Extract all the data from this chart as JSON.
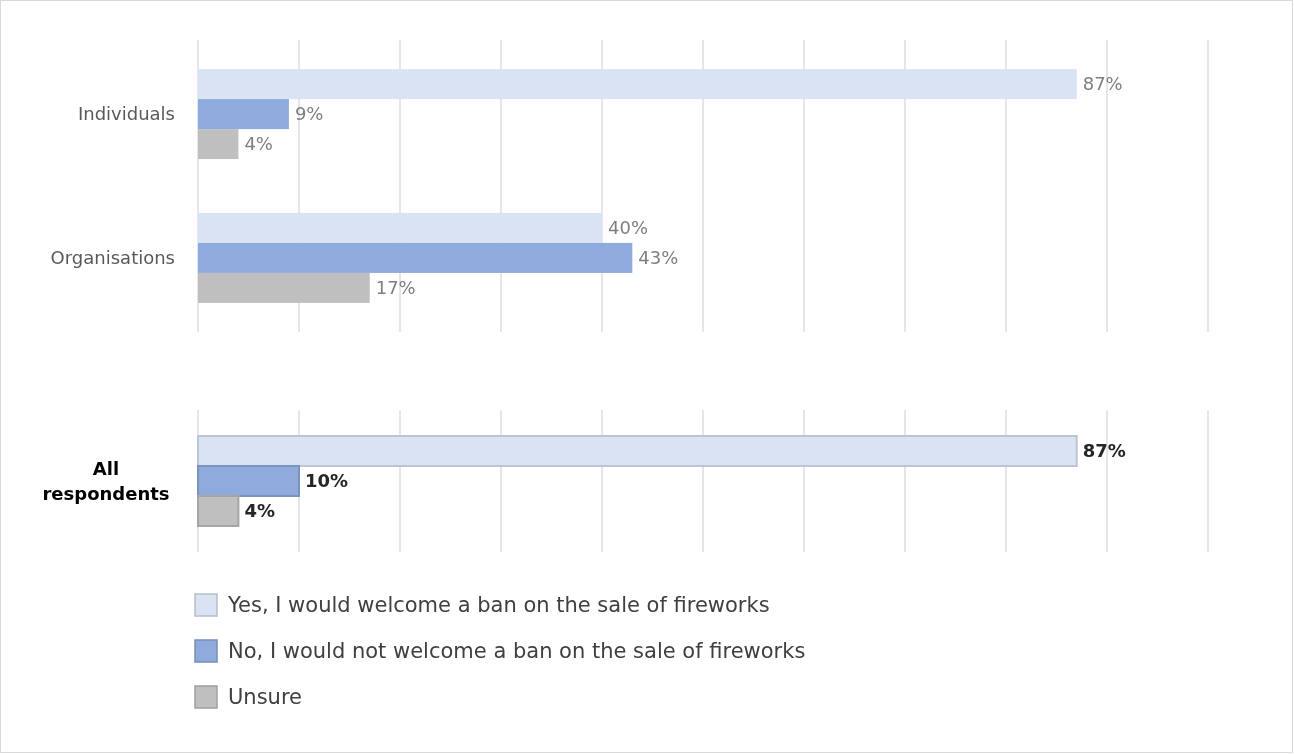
{
  "chart_data": [
    {
      "type": "bar",
      "orientation": "horizontal",
      "categories": [
        "Individuals",
        "Organisations"
      ],
      "series": [
        {
          "color": "#dae3f3",
          "values": [
            87,
            40
          ],
          "value_labels": [
            "87%",
            "40%"
          ]
        },
        {
          "color": "#8faadc",
          "values": [
            9,
            43
          ],
          "value_labels": [
            "9%",
            "43%"
          ]
        },
        {
          "color": "#bfbfbf",
          "values": [
            4,
            17
          ],
          "value_labels": [
            "4%",
            "17%"
          ]
        }
      ],
      "xlim": [
        0,
        100
      ],
      "xticks": [
        {
          "value": 0,
          "label": null
        },
        {
          "value": 10,
          "label": null
        },
        {
          "value": 20,
          "label": null
        },
        {
          "value": 30,
          "label": null
        },
        {
          "value": 40,
          "label": null
        },
        {
          "value": 50,
          "label": null
        },
        {
          "value": 60,
          "label": null
        },
        {
          "value": 70,
          "label": null
        },
        {
          "value": 80,
          "label": null
        },
        {
          "value": 90,
          "label": null
        },
        {
          "value": 100,
          "label": null
        }
      ],
      "grid": "x",
      "legend": false
    },
    {
      "type": "bar",
      "orientation": "horizontal",
      "categories": [
        "All respondents"
      ],
      "series": [
        {
          "name": "Yes, I would welcome a ban on the sale of fireworks",
          "color": "#dae3f3",
          "values": [
            87
          ],
          "value_labels": [
            "87%"
          ]
        },
        {
          "name": "No, I would not welcome a ban on the sale of fireworks",
          "color": "#8faadc",
          "values": [
            10
          ],
          "value_labels": [
            "10%"
          ]
        },
        {
          "name": "Unsure",
          "color": "#bfbfbf",
          "values": [
            4
          ],
          "value_labels": [
            "4%"
          ]
        }
      ],
      "xlim": [
        0,
        100
      ],
      "xticks": [
        {
          "value": 0,
          "label": null
        },
        {
          "value": 10,
          "label": null
        },
        {
          "value": 20,
          "label": null
        },
        {
          "value": 30,
          "label": null
        },
        {
          "value": 40,
          "label": null
        },
        {
          "value": 50,
          "label": null
        },
        {
          "value": 60,
          "label": null
        },
        {
          "value": 70,
          "label": null
        },
        {
          "value": 80,
          "label": null
        },
        {
          "value": 90,
          "label": null
        },
        {
          "value": 100,
          "label": null
        }
      ],
      "grid": "x",
      "legend": "bottom"
    }
  ]
}
